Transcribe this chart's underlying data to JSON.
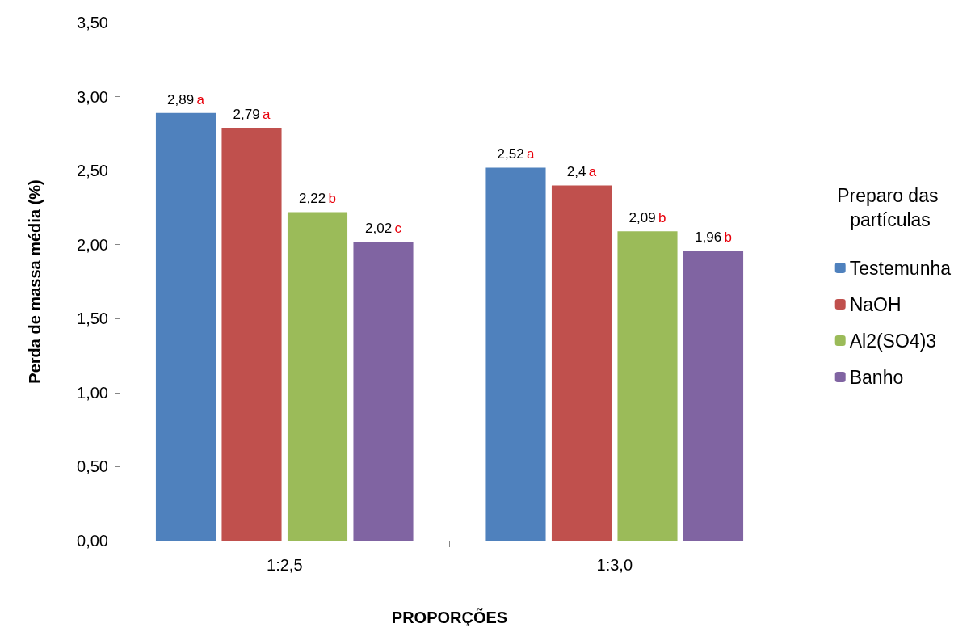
{
  "chart_data": {
    "type": "bar",
    "xlabel": "PROPORÇÕES",
    "ylabel": "Perda de massa média (%)",
    "legend_title": "Preparo das partículas",
    "categories": [
      "1:2,5",
      "1:3,0"
    ],
    "series": [
      {
        "name": "Testemunha",
        "color": "#4f81bd",
        "values": [
          2.89,
          2.52
        ],
        "value_labels": [
          "2,89 a",
          "2,52 a"
        ]
      },
      {
        "name": "NaOH",
        "color": "#c0504d",
        "values": [
          2.79,
          2.4
        ],
        "value_labels": [
          "2,79 a",
          "2,4 a"
        ]
      },
      {
        "name": "Al2(SO4)3",
        "color": "#9bbb59",
        "values": [
          2.22,
          2.09
        ],
        "value_labels": [
          "2,22 b",
          "2,09 b"
        ]
      },
      {
        "name": "Banho",
        "color": "#8064a2",
        "values": [
          2.02,
          1.96
        ],
        "value_labels": [
          "2,02 c",
          "1,96 b"
        ]
      }
    ],
    "ylim": [
      0,
      3.5
    ],
    "yticks": [
      {
        "value": 0,
        "label": "0,00"
      },
      {
        "value": 0.5,
        "label": "0,50"
      },
      {
        "value": 1,
        "label": "1,00"
      },
      {
        "value": 1.5,
        "label": "1,50"
      },
      {
        "value": 2,
        "label": "2,00"
      },
      {
        "value": 2.5,
        "label": "2,50"
      },
      {
        "value": 3,
        "label": "3,00"
      },
      {
        "value": 3.5,
        "label": "3,50"
      }
    ],
    "grid": false,
    "legend": "right"
  }
}
